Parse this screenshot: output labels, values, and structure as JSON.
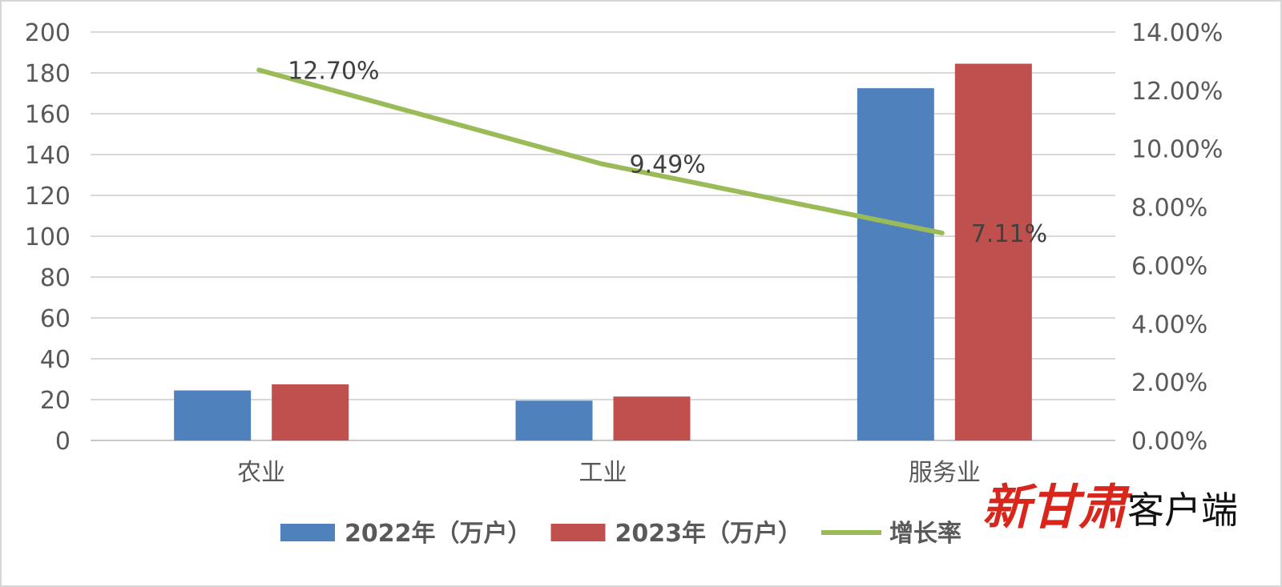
{
  "chart_data": {
    "type": "bar",
    "categories": [
      "农业",
      "工业",
      "服务业"
    ],
    "series": [
      {
        "name": "2022年（万户）",
        "type": "bar",
        "axis": "left",
        "color": "#4f81bd",
        "values": [
          24.5,
          19.5,
          172.5
        ]
      },
      {
        "name": "2023年（万户）",
        "type": "bar",
        "axis": "left",
        "color": "#c0504d",
        "values": [
          27.5,
          21.5,
          184.5
        ]
      },
      {
        "name": "增长率",
        "type": "line",
        "axis": "right",
        "color": "#9bbb59",
        "values": [
          12.7,
          9.49,
          7.11
        ],
        "labels": [
          "12.70%",
          "9.49%",
          "7.11%"
        ]
      }
    ],
    "ylim": [
      0,
      200
    ],
    "y_ticks": [
      "0",
      "20",
      "40",
      "60",
      "80",
      "100",
      "120",
      "140",
      "160",
      "180",
      "200"
    ],
    "y2lim": [
      0,
      14
    ],
    "y2_ticks": [
      "0.00%",
      "2.00%",
      "4.00%",
      "6.00%",
      "8.00%",
      "10.00%",
      "12.00%",
      "14.00%"
    ],
    "grid": true,
    "legend_position": "bottom"
  },
  "watermark": {
    "text_a": "新甘肃",
    "text_b": "客户端",
    "color": "#d9261c"
  }
}
